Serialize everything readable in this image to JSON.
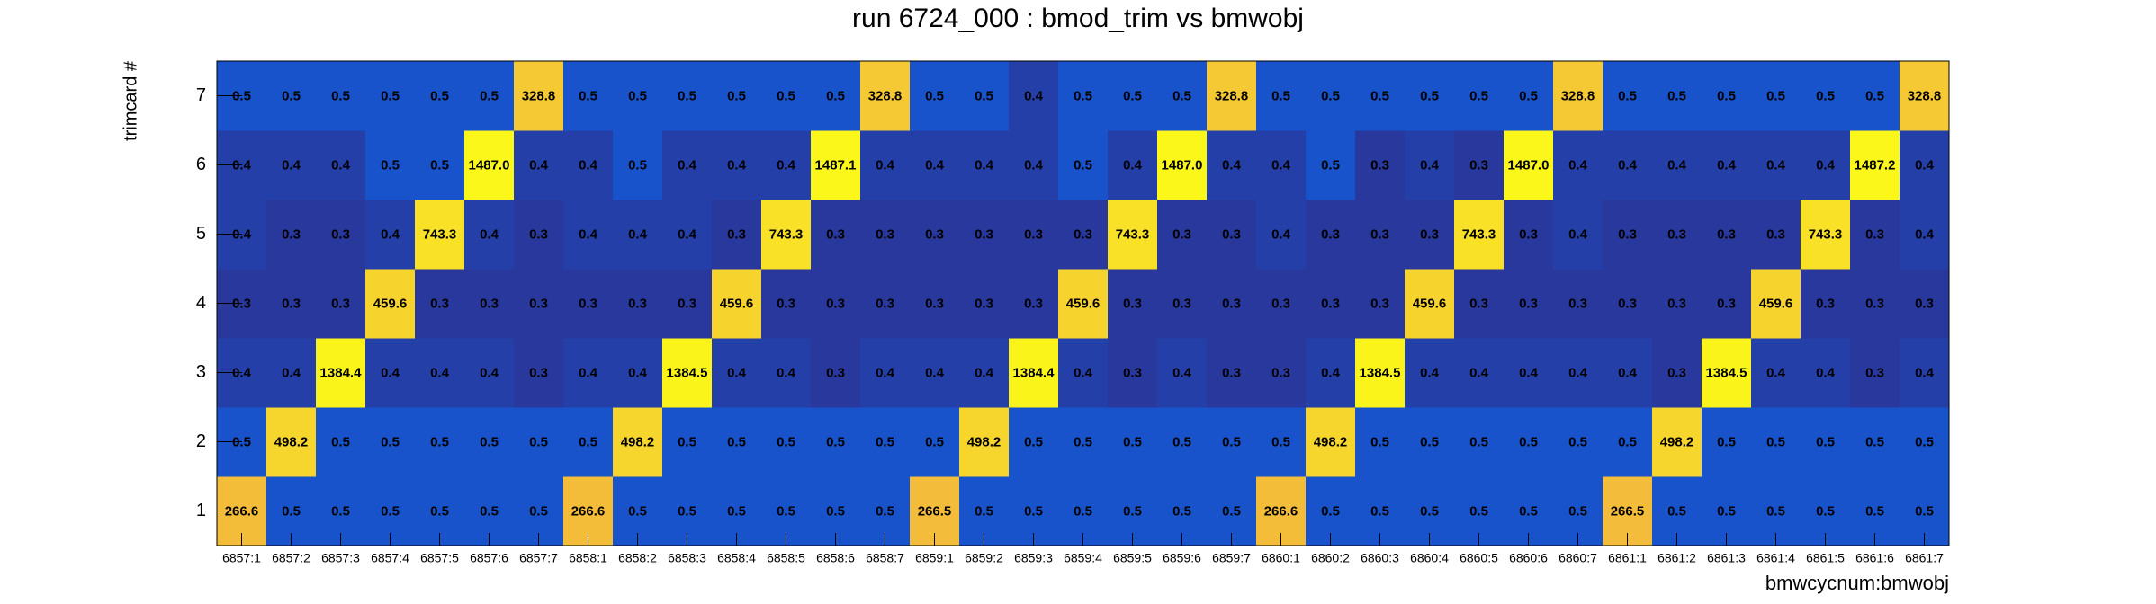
{
  "chart_data": {
    "type": "heatmap",
    "title": "run 6724_000 : bmod_trim vs bmwobj",
    "x_label": "bmwcycnum:bmwobj",
    "y_label": "trimcard #",
    "palette": [
      "#28389c",
      "#1853cc",
      "#f3bc3a",
      "#fbf71a"
    ],
    "categories": [
      "6857:1",
      "6857:2",
      "6857:3",
      "6857:4",
      "6857:5",
      "6857:6",
      "6857:7",
      "6858:1",
      "6858:2",
      "6858:3",
      "6858:4",
      "6858:5",
      "6858:6",
      "6858:7",
      "6859:1",
      "6859:2",
      "6859:3",
      "6859:4",
      "6859:5",
      "6859:6",
      "6859:7",
      "6860:1",
      "6860:2",
      "6860:3",
      "6860:4",
      "6860:5",
      "6860:6",
      "6860:7",
      "6861:1",
      "6861:2",
      "6861:3",
      "6861:4",
      "6861:5",
      "6861:6",
      "6861:7"
    ],
    "y_categories": [
      1,
      2,
      3,
      4,
      5,
      6,
      7
    ],
    "values": [
      [
        266.6,
        0.5,
        0.5,
        0.5,
        0.5,
        0.5,
        0.5,
        266.6,
        0.5,
        0.5,
        0.5,
        0.5,
        0.5,
        0.5,
        266.5,
        0.5,
        0.5,
        0.5,
        0.5,
        0.5,
        0.5,
        266.6,
        0.5,
        0.5,
        0.5,
        0.5,
        0.5,
        0.5,
        266.5,
        0.5,
        0.5,
        0.5,
        0.5,
        0.5,
        0.5
      ],
      [
        0.5,
        498.2,
        0.5,
        0.5,
        0.5,
        0.5,
        0.5,
        0.5,
        498.2,
        0.5,
        0.5,
        0.5,
        0.5,
        0.5,
        0.5,
        498.2,
        0.5,
        0.5,
        0.5,
        0.5,
        0.5,
        0.5,
        498.2,
        0.5,
        0.5,
        0.5,
        0.5,
        0.5,
        0.5,
        498.2,
        0.5,
        0.5,
        0.5,
        0.5,
        0.5
      ],
      [
        0.4,
        0.4,
        1384.4,
        0.4,
        0.4,
        0.4,
        0.3,
        0.4,
        0.4,
        1384.5,
        0.4,
        0.4,
        0.3,
        0.4,
        0.4,
        0.4,
        1384.4,
        0.4,
        0.3,
        0.4,
        0.3,
        0.3,
        0.4,
        1384.5,
        0.4,
        0.4,
        0.4,
        0.4,
        0.4,
        0.3,
        1384.5,
        0.4,
        0.4,
        0.3,
        0.4
      ],
      [
        0.3,
        0.3,
        0.3,
        459.6,
        0.3,
        0.3,
        0.3,
        0.3,
        0.3,
        0.3,
        459.6,
        0.3,
        0.3,
        0.3,
        0.3,
        0.3,
        0.3,
        459.6,
        0.3,
        0.3,
        0.3,
        0.3,
        0.3,
        0.3,
        459.6,
        0.3,
        0.3,
        0.3,
        0.3,
        0.3,
        0.3,
        459.6,
        0.3,
        0.3,
        0.3
      ],
      [
        0.4,
        0.3,
        0.3,
        0.4,
        743.3,
        0.4,
        0.3,
        0.4,
        0.4,
        0.4,
        0.3,
        743.3,
        0.3,
        0.3,
        0.3,
        0.3,
        0.3,
        0.3,
        743.3,
        0.3,
        0.3,
        0.4,
        0.3,
        0.3,
        0.3,
        743.3,
        0.3,
        0.4,
        0.3,
        0.3,
        0.3,
        0.3,
        743.3,
        0.3,
        0.4
      ],
      [
        0.4,
        0.4,
        0.4,
        0.5,
        0.5,
        1487.0,
        0.4,
        0.4,
        0.5,
        0.4,
        0.4,
        0.4,
        1487.1,
        0.4,
        0.4,
        0.4,
        0.4,
        0.5,
        0.4,
        1487.0,
        0.4,
        0.4,
        0.5,
        0.3,
        0.4,
        0.3,
        1487.0,
        0.4,
        0.4,
        0.4,
        0.4,
        0.4,
        0.4,
        1487.2,
        0.4
      ],
      [
        0.5,
        0.5,
        0.5,
        0.5,
        0.5,
        0.5,
        328.8,
        0.5,
        0.5,
        0.5,
        0.5,
        0.5,
        0.5,
        328.8,
        0.5,
        0.5,
        0.4,
        0.5,
        0.5,
        0.5,
        328.8,
        0.5,
        0.5,
        0.5,
        0.5,
        0.5,
        0.5,
        328.8,
        0.5,
        0.5,
        0.5,
        0.5,
        0.5,
        0.5,
        328.8
      ]
    ],
    "value_labels": [
      [
        "266.6",
        "0.5",
        "0.5",
        "0.5",
        "0.5",
        "0.5",
        "0.5",
        "266.6",
        "0.5",
        "0.5",
        "0.5",
        "0.5",
        "0.5",
        "0.5",
        "266.5",
        "0.5",
        "0.5",
        "0.5",
        "0.5",
        "0.5",
        "0.5",
        "266.6",
        "0.5",
        "0.5",
        "0.5",
        "0.5",
        "0.5",
        "0.5",
        "266.5",
        "0.5",
        "0.5",
        "0.5",
        "0.5",
        "0.5",
        "0.5"
      ],
      [
        "0.5",
        "498.2",
        "0.5",
        "0.5",
        "0.5",
        "0.5",
        "0.5",
        "0.5",
        "498.2",
        "0.5",
        "0.5",
        "0.5",
        "0.5",
        "0.5",
        "0.5",
        "498.2",
        "0.5",
        "0.5",
        "0.5",
        "0.5",
        "0.5",
        "0.5",
        "498.2",
        "0.5",
        "0.5",
        "0.5",
        "0.5",
        "0.5",
        "0.5",
        "498.2",
        "0.5",
        "0.5",
        "0.5",
        "0.5",
        "0.5"
      ],
      [
        "0.4",
        "0.4",
        "1384.4",
        "0.4",
        "0.4",
        "0.4",
        "0.3",
        "0.4",
        "0.4",
        "1384.5",
        "0.4",
        "0.4",
        "0.3",
        "0.4",
        "0.4",
        "0.4",
        "1384.4",
        "0.4",
        "0.3",
        "0.4",
        "0.3",
        "0.3",
        "0.4",
        "1384.5",
        "0.4",
        "0.4",
        "0.4",
        "0.4",
        "0.4",
        "0.3",
        "1384.5",
        "0.4",
        "0.4",
        "0.3",
        "0.4"
      ],
      [
        "0.3",
        "0.3",
        "0.3",
        "459.6",
        "0.3",
        "0.3",
        "0.3",
        "0.3",
        "0.3",
        "0.3",
        "459.6",
        "0.3",
        "0.3",
        "0.3",
        "0.3",
        "0.3",
        "0.3",
        "459.6",
        "0.3",
        "0.3",
        "0.3",
        "0.3",
        "0.3",
        "0.3",
        "459.6",
        "0.3",
        "0.3",
        "0.3",
        "0.3",
        "0.3",
        "0.3",
        "459.6",
        "0.3",
        "0.3",
        "0.3"
      ],
      [
        "0.4",
        "0.3",
        "0.3",
        "0.4",
        "743.3",
        "0.4",
        "0.3",
        "0.4",
        "0.4",
        "0.4",
        "0.3",
        "743.3",
        "0.3",
        "0.3",
        "0.3",
        "0.3",
        "0.3",
        "0.3",
        "743.3",
        "0.3",
        "0.3",
        "0.4",
        "0.3",
        "0.3",
        "0.3",
        "743.3",
        "0.3",
        "0.4",
        "0.3",
        "0.3",
        "0.3",
        "0.3",
        "743.3",
        "0.3",
        "0.4"
      ],
      [
        "0.4",
        "0.4",
        "0.4",
        "0.5",
        "0.5",
        "1487.0",
        "0.4",
        "0.4",
        "0.5",
        "0.4",
        "0.4",
        "0.4",
        "1487.1",
        "0.4",
        "0.4",
        "0.4",
        "0.4",
        "0.5",
        "0.4",
        "1487.0",
        "0.4",
        "0.4",
        "0.5",
        "0.3",
        "0.4",
        "0.3",
        "1487.0",
        "0.4",
        "0.4",
        "0.4",
        "0.4",
        "0.4",
        "0.4",
        "1487.2",
        "0.4"
      ],
      [
        "0.5",
        "0.5",
        "0.5",
        "0.5",
        "0.5",
        "0.5",
        "328.8",
        "0.5",
        "0.5",
        "0.5",
        "0.5",
        "0.5",
        "0.5",
        "328.8",
        "0.5",
        "0.5",
        "0.4",
        "0.5",
        "0.5",
        "0.5",
        "328.8",
        "0.5",
        "0.5",
        "0.5",
        "0.5",
        "0.5",
        "0.5",
        "328.8",
        "0.5",
        "0.5",
        "0.5",
        "0.5",
        "0.5",
        "0.5",
        "328.8"
      ]
    ]
  }
}
